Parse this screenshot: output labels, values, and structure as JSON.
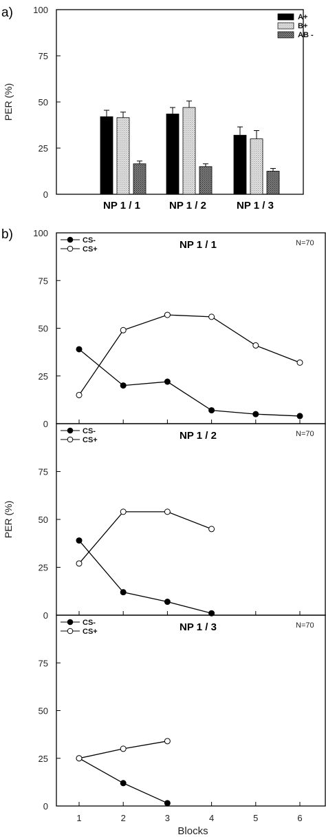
{
  "panel_a": {
    "letter": "a)"
  },
  "panel_b": {
    "letter": "b)"
  },
  "chart_data": [
    {
      "type": "bar",
      "title": "",
      "ylabel": "PER (%)",
      "xlabel": "",
      "ylim": [
        0,
        100
      ],
      "yticks": [
        "0",
        "25",
        "50",
        "75",
        "100"
      ],
      "categories": [
        "NP 1 / 1",
        "NP 1 / 2",
        "NP 1 / 3"
      ],
      "series": [
        {
          "name": "A+",
          "values": [
            42,
            43.5,
            32
          ],
          "errors": [
            3.5,
            3.5,
            4.5
          ],
          "color": "#000000"
        },
        {
          "name": "B+",
          "values": [
            41.5,
            47,
            30
          ],
          "errors": [
            3,
            3.5,
            4.5
          ],
          "color": "#d2d2d2"
        },
        {
          "name": "AB -",
          "values": [
            16.5,
            15,
            12.5
          ],
          "errors": [
            1.5,
            1.5,
            1.5
          ],
          "color": "#6e6e6e"
        }
      ],
      "legend": "top-right"
    },
    {
      "type": "line",
      "title": "NP 1 / 1",
      "note": "N=70",
      "ylabel": "",
      "ylim": [
        0,
        100
      ],
      "yticks": [
        "0",
        "25",
        "50",
        "75",
        "100"
      ],
      "series": [
        {
          "name": "CS-",
          "x": [
            1,
            2,
            3,
            4,
            5,
            6
          ],
          "values": [
            39,
            20,
            22,
            7,
            5,
            4
          ],
          "marker": "filled"
        },
        {
          "name": "CS+",
          "x": [
            1,
            2,
            3,
            4,
            5,
            6
          ],
          "values": [
            15,
            49,
            57,
            56,
            41,
            32
          ],
          "marker": "open"
        }
      ],
      "legend": "top-left"
    },
    {
      "type": "line",
      "title": "NP 1 / 2",
      "note": "N=70",
      "ylabel": "PER (%)",
      "ylim": [
        0,
        100
      ],
      "yticks": [
        "0",
        "25",
        "50",
        "75"
      ],
      "series": [
        {
          "name": "CS-",
          "x": [
            1,
            2,
            3,
            4
          ],
          "values": [
            39,
            12,
            7,
            1
          ],
          "marker": "filled"
        },
        {
          "name": "CS+",
          "x": [
            1,
            2,
            3,
            4
          ],
          "values": [
            27,
            54,
            54,
            45
          ],
          "marker": "open"
        }
      ],
      "legend": "top-left"
    },
    {
      "type": "line",
      "title": "NP 1 / 3",
      "note": "N=70",
      "ylabel": "",
      "xlabel": "Blocks",
      "ylim": [
        0,
        100
      ],
      "yticks": [
        "0",
        "25",
        "50",
        "75"
      ],
      "xticks": [
        "1",
        "2",
        "3",
        "4",
        "5",
        "6"
      ],
      "series": [
        {
          "name": "CS-",
          "x": [
            1,
            2,
            3
          ],
          "values": [
            25,
            12,
            1.5
          ],
          "marker": "filled"
        },
        {
          "name": "CS+",
          "x": [
            1,
            2,
            3
          ],
          "values": [
            25,
            30,
            34
          ],
          "marker": "open"
        }
      ],
      "legend": "top-left"
    }
  ]
}
